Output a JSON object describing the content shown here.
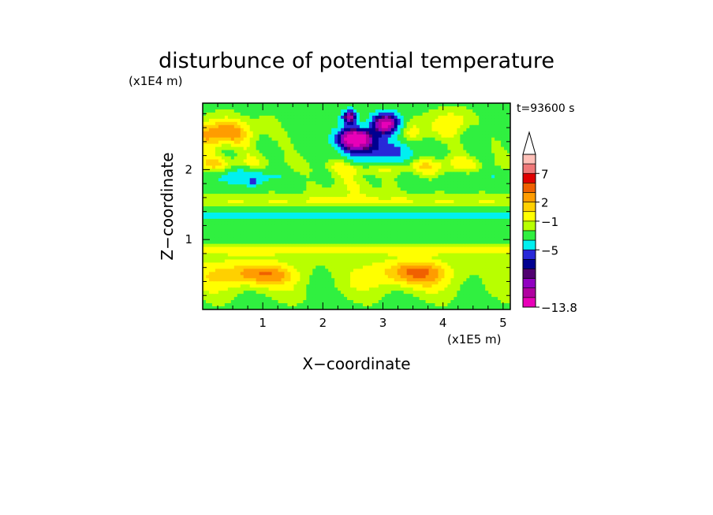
{
  "chart_data": {
    "type": "heatmap",
    "title": "disturbunce of potential temperature",
    "xlabel": "X−coordinate",
    "ylabel": "Z−coordinate",
    "x_unit": "(x1E5 m)",
    "y_unit": "(x1E4 m)",
    "time_label": "t=93600 s",
    "x_ticks": [
      "1",
      "2",
      "3",
      "4",
      "5"
    ],
    "y_ticks": [
      "1",
      "2"
    ],
    "xlim": [
      0,
      5.12
    ],
    "ylim": [
      0,
      2.95
    ],
    "colorbar": {
      "labels": [
        "7",
        "2",
        "−1",
        "−5",
        "−13.8"
      ],
      "colors": [
        "#ffffff",
        "#ffc0b8",
        "#f07878",
        "#e00000",
        "#f06000",
        "#ff9c00",
        "#ffd000",
        "#ffff00",
        "#b8ff00",
        "#30f040",
        "#00f0f0",
        "#2828d8",
        "#000090",
        "#500070",
        "#9000c0",
        "#b000a0",
        "#e800b8"
      ]
    },
    "field_notes": {
      "min_value": -13.8,
      "cold_cores": [
        {
          "x": 2.55,
          "z": 2.45,
          "value": -13.8
        },
        {
          "x": 3.05,
          "z": 2.65,
          "value": -12
        },
        {
          "x": 2.45,
          "z": 2.75,
          "value": -9
        }
      ],
      "warm_layers": [
        {
          "z": 0.5,
          "value": 3
        },
        {
          "z": 2.1,
          "value": 3
        },
        {
          "z": 2.55,
          "value": 3
        }
      ]
    }
  }
}
